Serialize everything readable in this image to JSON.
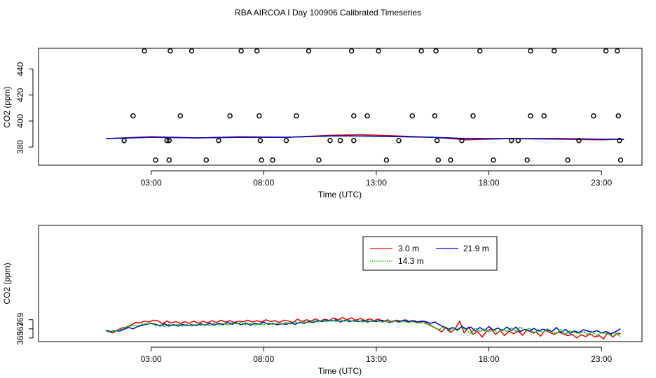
{
  "figure_title": "RBA AIRCOA I  Day 100906  Calibrated Timeseries",
  "colors": {
    "red": "#e60000",
    "green": "#00c000",
    "blue": "#0000d0",
    "flag": "#000000"
  },
  "chart_data": [
    {
      "type": "line",
      "title": "",
      "xlabel": "Time (UTC)",
      "ylabel": "CO2 (ppm)",
      "xlim": [
        -2,
        24.8
      ],
      "ylim": [
        366,
        456
      ],
      "x_ticks": [
        3,
        8,
        13,
        18,
        23
      ],
      "x_tick_labels": [
        "03:00",
        "08:00",
        "13:00",
        "18:00",
        "23:00"
      ],
      "y_ticks": [
        380,
        400,
        420,
        440
      ],
      "y_tick_labels": [
        "380",
        "400",
        "420",
        "440"
      ],
      "series": [
        {
          "name": "red",
          "color": "#e60000",
          "x": [
            1,
            3,
            5,
            7,
            9,
            11,
            12.3,
            14,
            15.5,
            17,
            19,
            21,
            23,
            24
          ],
          "y": [
            386.5,
            388,
            387,
            388,
            387.5,
            389,
            389.5,
            388.5,
            387.5,
            385.5,
            386.5,
            386,
            385.5,
            386
          ]
        },
        {
          "name": "green",
          "color": "#00c000",
          "x": [
            1,
            3,
            5,
            7,
            9,
            11,
            12.3,
            14,
            15.5,
            17,
            19,
            21,
            23,
            24
          ],
          "y": [
            386.5,
            387.5,
            387,
            387.5,
            387.5,
            388.5,
            388.5,
            388,
            387.5,
            386.5,
            386.5,
            386.5,
            386,
            386
          ]
        },
        {
          "name": "blue",
          "color": "#0000d0",
          "x": [
            1,
            3,
            5,
            7,
            9,
            11,
            12.3,
            14,
            15.5,
            17,
            19,
            21,
            23,
            24
          ],
          "y": [
            386.5,
            387.5,
            387,
            387.5,
            387.5,
            388.5,
            388.5,
            388,
            387.5,
            386.5,
            386.5,
            386.5,
            386,
            386
          ]
        }
      ],
      "flag_points": {
        "x": [
          1.8,
          2.2,
          2.7,
          3.2,
          3.7,
          3.8,
          3.8,
          3.85,
          4.3,
          4.8,
          5.45,
          6.0,
          6.5,
          7.0,
          7.7,
          7.8,
          7.85,
          7.9,
          8.4,
          9.0,
          9.45,
          10.0,
          10.45,
          10.95,
          11.4,
          11.9,
          12.0,
          12.0,
          12.6,
          13.1,
          13.45,
          14.0,
          14.6,
          15.0,
          15.65,
          15.6,
          15.7,
          15.75,
          16.3,
          16.8,
          17.3,
          17.6,
          18.2,
          19.0,
          19.3,
          19.7,
          19.85,
          19.85,
          20.45,
          20.9,
          21.5,
          22.0,
          22.65,
          23.2,
          23.7,
          23.75,
          23.8,
          23.85
        ],
        "y": [
          385,
          404,
          454,
          370,
          385,
          370,
          385,
          454,
          404,
          454,
          370,
          385,
          404,
          454,
          454,
          404,
          385,
          370,
          370,
          385,
          404,
          454,
          370,
          385,
          385,
          454,
          404,
          385,
          404,
          454,
          370,
          385,
          404,
          454,
          454,
          404,
          385,
          370,
          370,
          385,
          404,
          454,
          370,
          385,
          385,
          370,
          404,
          454,
          404,
          454,
          370,
          385,
          404,
          454,
          454,
          404,
          385,
          370
        ]
      }
    },
    {
      "type": "line",
      "title": "",
      "xlabel": "Time (UTC)",
      "ylabel": "CO2 (ppm)",
      "xlim": [
        -2,
        24.8
      ],
      "ylim": [
        364.2,
        389.7
      ],
      "x_ticks": [
        3,
        8,
        13,
        18,
        23
      ],
      "x_tick_labels": [
        "03:00",
        "08:00",
        "13:00",
        "18:00",
        "23:00"
      ],
      "y_ticks": [
        365,
        367,
        369
      ],
      "y_tick_labels": [
        "365",
        "367",
        "369"
      ],
      "legend": {
        "position": "top-center",
        "entries": [
          {
            "label": "3.0 m",
            "color": "#e60000"
          },
          {
            "label": "21.9 m",
            "color": "#0000d0"
          },
          {
            "label": "14.3 m",
            "color": "#00c000"
          }
        ]
      },
      "series": [
        {
          "name": "3.0 m",
          "color": "#e60000",
          "x": [
            1,
            1.15,
            1.3,
            1.5,
            1.7,
            1.9,
            2.1,
            2.3,
            2.5,
            2.7,
            2.9,
            3.1,
            3.3,
            3.5,
            3.7,
            3.9,
            4.1,
            4.3,
            4.5,
            4.7,
            4.9,
            5.1,
            5.3,
            5.5,
            5.7,
            5.9,
            6.1,
            6.3,
            6.5,
            6.7,
            6.9,
            7.1,
            7.3,
            7.5,
            7.7,
            7.9,
            8.1,
            8.3,
            8.5,
            8.7,
            8.9,
            9.1,
            9.3,
            9.5,
            9.7,
            9.9,
            10.1,
            10.3,
            10.5,
            10.7,
            10.9,
            11.1,
            11.3,
            11.5,
            11.7,
            11.9,
            12.1,
            12.3,
            12.5,
            12.7,
            12.9,
            13.1,
            13.3,
            13.5,
            13.7,
            13.9,
            14.1,
            14.3,
            14.5,
            14.7,
            14.9,
            15.1,
            15.3,
            15.5,
            15.7,
            15.9,
            16.1,
            16.3,
            16.5,
            16.7,
            16.9,
            17.1,
            17.3,
            17.5,
            17.7,
            17.9,
            18.1,
            18.3,
            18.5,
            18.7,
            18.9,
            19.1,
            19.3,
            19.5,
            19.7,
            19.9,
            20.1,
            20.3,
            20.5,
            20.7,
            20.9,
            21.1,
            21.3,
            21.5,
            21.7,
            21.9,
            22.1,
            22.3,
            22.5,
            22.7,
            22.9,
            23.1,
            23.3,
            23.5,
            23.7,
            23.85
          ],
          "y": [
            366.6,
            366.3,
            366.1,
            366.7,
            367.2,
            367.4,
            367.8,
            368.4,
            368.3,
            368.7,
            368.5,
            368.9,
            368.8,
            368.1,
            368.7,
            368.3,
            368.6,
            368.2,
            368.6,
            368.2,
            368.7,
            368.2,
            368.7,
            368.3,
            368.8,
            368.4,
            368.9,
            368.5,
            368.8,
            368.4,
            368.7,
            368.6,
            368.9,
            368.5,
            368.8,
            368.5,
            369.0,
            368.6,
            368.8,
            368.4,
            368.9,
            368.7,
            368.4,
            369.1,
            368.6,
            369.0,
            368.7,
            369.2,
            368.7,
            369.1,
            368.8,
            369.4,
            369.0,
            369.5,
            369.0,
            369.4,
            368.9,
            369.3,
            368.8,
            369.2,
            368.8,
            369.2,
            368.5,
            369.0,
            368.5,
            368.9,
            368.7,
            369.0,
            368.5,
            368.8,
            368.3,
            368.7,
            368.0,
            367.5,
            367.0,
            366.3,
            367.4,
            366.2,
            367.0,
            368.7,
            366.1,
            367.4,
            365.8,
            366.4,
            365.2,
            366.5,
            367.0,
            365.8,
            366.6,
            365.5,
            366.5,
            365.9,
            366.5,
            365.6,
            366.8,
            366.2,
            366.3,
            365.4,
            366.7,
            366.2,
            365.8,
            366.3,
            365.9,
            365.5,
            365.8,
            365.0,
            365.7,
            365.3,
            365.9,
            365.2,
            365.5,
            364.8,
            366.3,
            365.2,
            366.0,
            365.9
          ]
        },
        {
          "name": "21.9 m",
          "color": "#0000d0",
          "x": [
            1,
            1.2,
            1.4,
            1.6,
            1.8,
            2.0,
            2.2,
            2.4,
            2.6,
            2.8,
            3.0,
            3.2,
            3.4,
            3.6,
            3.8,
            4.0,
            4.2,
            4.4,
            4.6,
            4.8,
            5.0,
            5.2,
            5.4,
            5.6,
            5.8,
            6.0,
            6.2,
            6.4,
            6.6,
            6.8,
            7.0,
            7.2,
            7.4,
            7.6,
            7.8,
            8.0,
            8.2,
            8.4,
            8.6,
            8.8,
            9.0,
            9.2,
            9.4,
            9.6,
            9.8,
            10.0,
            10.2,
            10.4,
            10.6,
            10.8,
            11.0,
            11.2,
            11.4,
            11.6,
            11.8,
            12.0,
            12.2,
            12.4,
            12.6,
            12.8,
            13.0,
            13.2,
            13.4,
            13.6,
            13.8,
            14.0,
            14.2,
            14.4,
            14.6,
            14.8,
            15.0,
            15.2,
            15.4,
            15.6,
            15.8,
            16.0,
            16.2,
            16.4,
            16.6,
            16.8,
            17.0,
            17.2,
            17.4,
            17.6,
            17.8,
            18.0,
            18.2,
            18.4,
            18.6,
            18.8,
            19.0,
            19.2,
            19.4,
            19.6,
            19.8,
            20.0,
            20.2,
            20.4,
            20.6,
            20.8,
            21.0,
            21.2,
            21.4,
            21.6,
            21.8,
            22.0,
            22.2,
            22.4,
            22.6,
            22.8,
            23.0,
            23.2,
            23.4,
            23.6,
            23.85
          ],
          "y": [
            366.7,
            366.4,
            366.6,
            366.5,
            366.9,
            367.3,
            367.0,
            367.5,
            367.8,
            368.0,
            368.2,
            368.0,
            367.6,
            368.1,
            367.6,
            367.9,
            367.6,
            368.0,
            367.7,
            367.9,
            367.7,
            368.1,
            367.8,
            368.2,
            367.8,
            368.2,
            367.9,
            368.4,
            368.0,
            368.3,
            367.9,
            368.3,
            367.8,
            368.2,
            368.0,
            368.5,
            368.0,
            368.2,
            367.9,
            368.1,
            368.0,
            368.3,
            368.0,
            368.4,
            368.2,
            368.6,
            368.4,
            368.8,
            368.6,
            369.0,
            368.7,
            369.0,
            368.5,
            368.9,
            368.6,
            368.8,
            368.6,
            368.8,
            368.5,
            368.7,
            368.6,
            368.9,
            368.7,
            368.4,
            368.8,
            368.5,
            368.9,
            368.6,
            368.8,
            368.5,
            368.7,
            368.6,
            368.2,
            368.5,
            367.9,
            367.4,
            366.9,
            367.3,
            366.8,
            367.5,
            367.0,
            367.4,
            366.5,
            367.3,
            366.6,
            367.5,
            366.7,
            367.2,
            366.6,
            367.4,
            366.6,
            367.4,
            366.4,
            366.9,
            366.5,
            367.1,
            366.5,
            366.9,
            366.7,
            366.4,
            367.3,
            366.2,
            366.9,
            366.0,
            366.5,
            366.2,
            366.8,
            366.5,
            366.3,
            366.6,
            366.1,
            366.4,
            365.9,
            366.3,
            367.0
          ]
        },
        {
          "name": "14.3 m",
          "color": "#00c000",
          "x": [
            1,
            1.2,
            1.4,
            1.6,
            1.8,
            2.0,
            2.2,
            2.4,
            2.6,
            2.8,
            3.0,
            3.2,
            3.4,
            3.6,
            3.8,
            4.0,
            4.2,
            4.4,
            4.6,
            4.8,
            5.0,
            5.2,
            5.4,
            5.6,
            5.8,
            6.0,
            6.2,
            6.4,
            6.6,
            6.8,
            7.0,
            7.2,
            7.4,
            7.6,
            7.8,
            8.0,
            8.2,
            8.4,
            8.6,
            8.8,
            9.0,
            9.2,
            9.4,
            9.6,
            9.8,
            10.0,
            10.2,
            10.4,
            10.6,
            10.8,
            11.0,
            11.2,
            11.4,
            11.6,
            11.8,
            12.0,
            12.2,
            12.4,
            12.6,
            12.8,
            13.0,
            13.2,
            13.4,
            13.6,
            13.8,
            14.0,
            14.2,
            14.4,
            14.6,
            14.8,
            15.0,
            15.2,
            15.4,
            15.6,
            15.8,
            16.0,
            16.2,
            16.4,
            16.6,
            16.8,
            17.0,
            17.2,
            17.4,
            17.6,
            17.8,
            18.0,
            18.2,
            18.4,
            18.6,
            18.8,
            19.0,
            19.2,
            19.4,
            19.6,
            19.8,
            20.0,
            20.2,
            20.4,
            20.6,
            20.8,
            21.0,
            21.2,
            21.4,
            21.6,
            21.8,
            22.0,
            22.2,
            22.4,
            22.6,
            22.8,
            23.0,
            23.2,
            23.4,
            23.6,
            23.85
          ],
          "y": [
            366.5,
            366.3,
            366.5,
            366.8,
            367.2,
            367.5,
            367.8,
            367.6,
            368.0,
            368.1,
            368.2,
            367.7,
            367.9,
            367.5,
            368.0,
            367.7,
            368.0,
            367.6,
            367.9,
            367.6,
            368.0,
            367.8,
            368.0,
            367.7,
            368.2,
            367.9,
            368.2,
            367.8,
            368.3,
            368.1,
            368.4,
            367.9,
            368.2,
            367.8,
            368.1,
            367.9,
            368.3,
            368.0,
            368.2,
            368.0,
            368.4,
            368.1,
            368.5,
            368.2,
            368.6,
            368.4,
            368.8,
            368.5,
            368.9,
            368.6,
            368.9,
            368.6,
            369.0,
            368.7,
            368.9,
            368.6,
            368.8,
            368.5,
            368.8,
            368.6,
            368.9,
            368.5,
            368.7,
            368.5,
            368.8,
            368.4,
            368.7,
            368.4,
            368.6,
            368.3,
            368.4,
            368.1,
            367.9,
            367.2,
            366.8,
            367.6,
            366.5,
            367.2,
            366.6,
            367.3,
            366.7,
            366.0,
            367.2,
            366.4,
            367.0,
            366.3,
            366.9,
            366.1,
            367.0,
            366.4,
            367.2,
            366.5,
            367.4,
            366.6,
            367.2,
            366.0,
            366.8,
            366.2,
            367.0,
            366.5,
            365.9,
            366.9,
            365.8,
            366.6,
            366.2,
            366.0,
            366.4,
            365.8,
            366.3,
            365.5,
            366.2,
            365.9,
            365.6,
            366.2,
            365.3
          ]
        }
      ]
    }
  ]
}
